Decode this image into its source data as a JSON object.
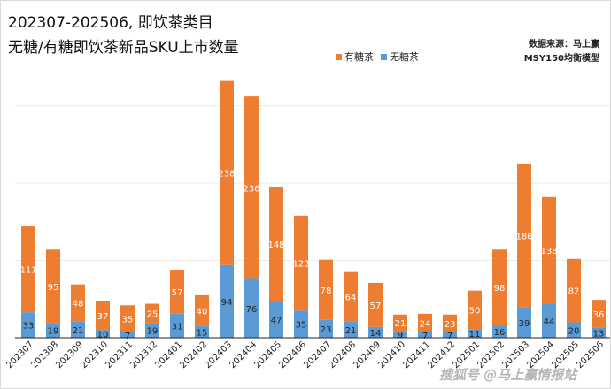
{
  "chart_data": {
    "type": "bar",
    "stacked": true,
    "title": "202307-202506, 即饮茶类目",
    "subtitle": "无糖/有糖即饮茶新品SKU上市数量",
    "source": "数据来源：马上赢",
    "model": "MSY150均衡模型",
    "legend": {
      "placement": "top-right",
      "entries": [
        "有糖茶",
        "无糖茶"
      ]
    },
    "categories": [
      "202307",
      "202308",
      "202309",
      "202310",
      "202311",
      "202312",
      "202401",
      "202402",
      "202403",
      "202404",
      "202405",
      "202406",
      "202407",
      "202408",
      "202409",
      "202410",
      "202411",
      "202412",
      "202501",
      "202502",
      "202503",
      "202504",
      "202505",
      "202506"
    ],
    "series": [
      {
        "name": "无糖茶",
        "color": "#5b9bd5",
        "values": [
          33,
          19,
          21,
          10,
          7,
          19,
          31,
          15,
          94,
          76,
          47,
          35,
          23,
          21,
          14,
          9,
          7,
          7,
          11,
          16,
          39,
          44,
          20,
          13
        ]
      },
      {
        "name": "有糖茶",
        "color": "#ed7d31",
        "values": [
          111,
          95,
          48,
          37,
          35,
          25,
          57,
          40,
          238,
          236,
          148,
          123,
          78,
          64,
          57,
          21,
          24,
          23,
          50,
          98,
          186,
          138,
          82,
          36
        ]
      }
    ],
    "ylim": [
      0,
      335
    ],
    "grid": true,
    "xlabel": "",
    "ylabel": ""
  },
  "watermark": "搜狐号 @马上赢情报站"
}
